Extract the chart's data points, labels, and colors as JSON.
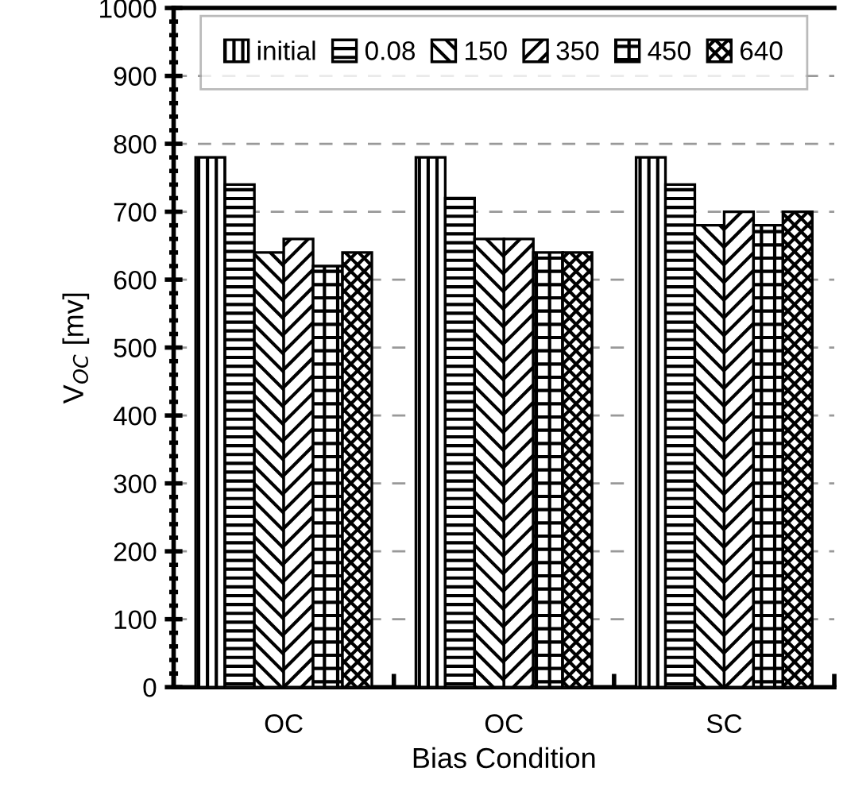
{
  "chart_data": {
    "type": "bar",
    "xlabel": "Bias Condition",
    "ylabel": "V$_{OC}$ [mv]",
    "categories": [
      "OC",
      "OC",
      "SC"
    ],
    "series": [
      {
        "name": "initial",
        "color": "#000000",
        "values": [
          780,
          780,
          780
        ]
      },
      {
        "name": "0.08",
        "color": "#000000",
        "values": [
          740,
          720,
          740
        ]
      },
      {
        "name": "150",
        "color": "#000000",
        "values": [
          640,
          660,
          680
        ]
      },
      {
        "name": "350",
        "color": "#000000",
        "values": [
          660,
          660,
          700
        ]
      },
      {
        "name": "450",
        "color": "#000000",
        "values": [
          620,
          640,
          680
        ]
      },
      {
        "name": "640",
        "color": "#000000",
        "values": [
          640,
          640,
          700
        ]
      }
    ],
    "ylim": [
      0,
      1000
    ],
    "yticks": [
      0,
      100,
      200,
      300,
      400,
      500,
      600,
      700,
      800,
      900,
      1000
    ],
    "grid": "y",
    "legend": "top"
  }
}
